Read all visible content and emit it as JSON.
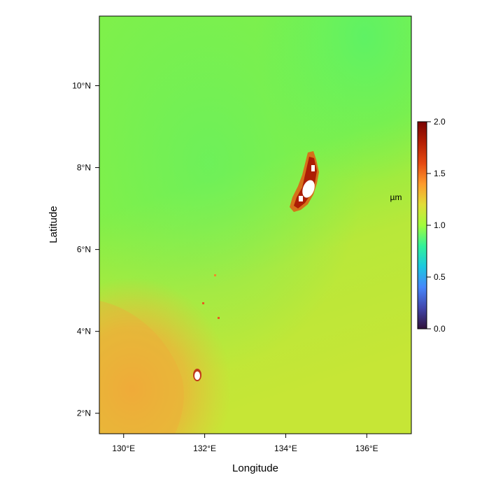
{
  "map": {
    "x_axis": {
      "title": "Longitude",
      "range": [
        129.4,
        137.1
      ],
      "ticks": [
        {
          "value": 130,
          "label": "130°E"
        },
        {
          "value": 132,
          "label": "132°E"
        },
        {
          "value": 134,
          "label": "134°E"
        },
        {
          "value": 136,
          "label": "136°E"
        }
      ]
    },
    "y_axis": {
      "title": "Latitude",
      "range": [
        1.5,
        11.7
      ],
      "ticks": [
        {
          "value": 2,
          "label": "2°N"
        },
        {
          "value": 4,
          "label": "4°N"
        },
        {
          "value": 6,
          "label": "6°N"
        },
        {
          "value": 8,
          "label": "8°N"
        },
        {
          "value": 10,
          "label": "10°N"
        }
      ]
    },
    "colorbar": {
      "unit": "µm",
      "range": [
        0.0,
        2.0
      ],
      "ticks": [
        {
          "value": 0.0,
          "label": "0.0"
        },
        {
          "value": 0.5,
          "label": "0.5"
        },
        {
          "value": 1.0,
          "label": "1.0"
        },
        {
          "value": 1.5,
          "label": "1.5"
        },
        {
          "value": 2.0,
          "label": "2.0"
        }
      ],
      "colors": [
        "#30123b",
        "#4146ab",
        "#4686fb",
        "#1bc8e0",
        "#31f299",
        "#a2fc3c",
        "#e1dd37",
        "#fe9b2d",
        "#e54911",
        "#b41f04",
        "#7a0403"
      ]
    },
    "islands": [
      {
        "name": "",
        "lon": 134.5,
        "lat": 7.6
      },
      {
        "name": "",
        "lon": 131.8,
        "lat": 2.9
      }
    ]
  }
}
